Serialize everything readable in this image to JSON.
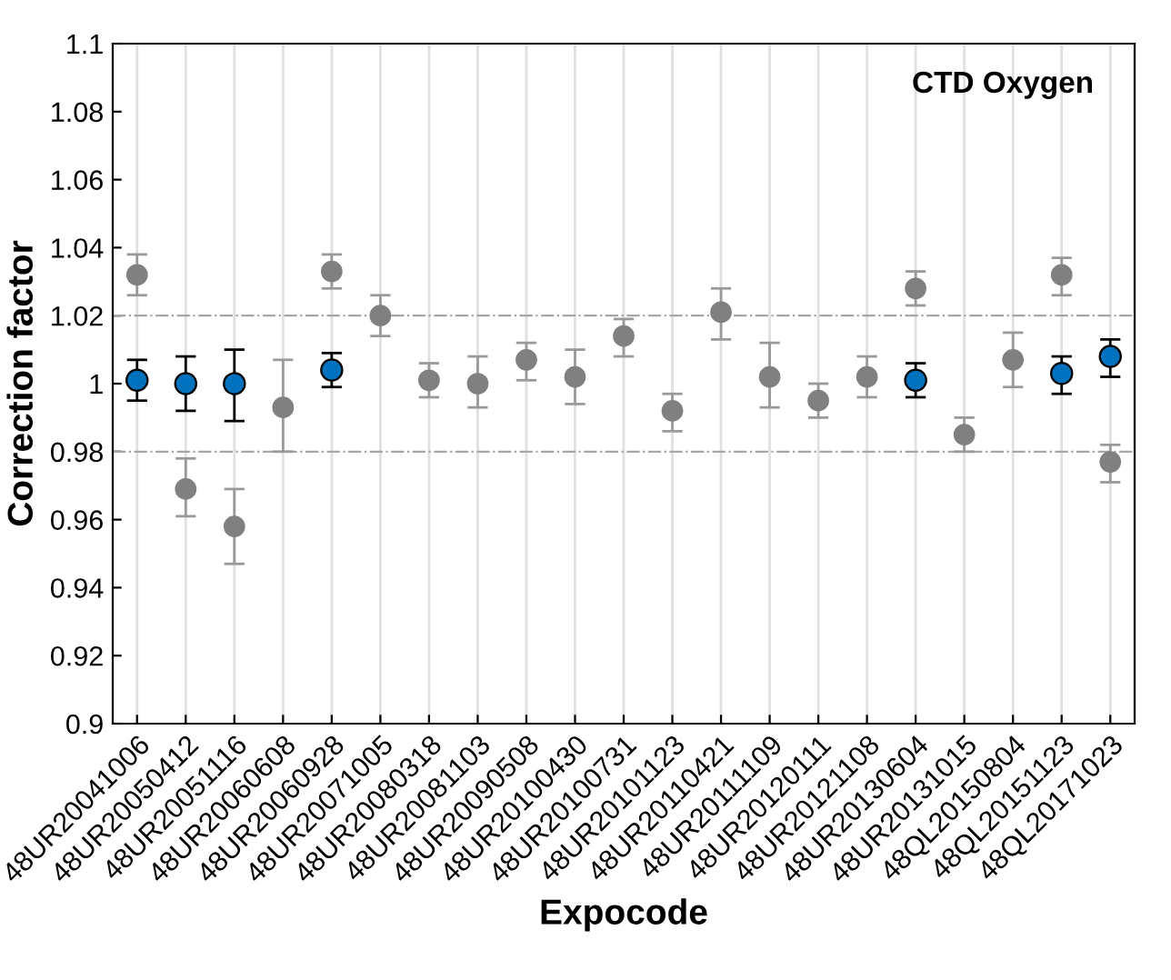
{
  "chart_data": {
    "type": "scatter",
    "title": "CTD Oxygen",
    "xlabel": "Expocode",
    "ylabel": "Correction factor",
    "categories": [
      "48UR20041006",
      "48UR20050412",
      "48UR20051116",
      "48UR20060608",
      "48UR20060928",
      "48UR20071005",
      "48UR20080318",
      "48UR20081103",
      "48UR20090508",
      "48UR20100430",
      "48UR20100731",
      "48UR20101123",
      "48UR20110421",
      "48UR20111109",
      "48UR20120111",
      "48UR20121108",
      "48UR20130604",
      "48UR20131015",
      "48QL20150804",
      "48QL20151123",
      "48QL20171023"
    ],
    "series": [
      {
        "color": "#808080",
        "values": [
          1.032,
          0.969,
          0.958,
          0.993,
          1.033,
          1.02,
          1.001,
          1.0,
          1.007,
          1.002,
          1.014,
          0.992,
          1.021,
          1.002,
          0.995,
          1.002,
          1.028,
          0.985,
          1.007,
          1.032,
          0.977
        ],
        "errors": [
          [
            1.026,
            1.038
          ],
          [
            0.961,
            0.978
          ],
          [
            0.947,
            0.969
          ],
          [
            0.98,
            1.007
          ],
          [
            1.028,
            1.038
          ],
          [
            1.014,
            1.026
          ],
          [
            0.996,
            1.006
          ],
          [
            0.993,
            1.008
          ],
          [
            1.001,
            1.012
          ],
          [
            0.994,
            1.01
          ],
          [
            1.008,
            1.019
          ],
          [
            0.986,
            0.997
          ],
          [
            1.013,
            1.028
          ],
          [
            0.993,
            1.012
          ],
          [
            0.99,
            1.0
          ],
          [
            0.996,
            1.008
          ],
          [
            1.023,
            1.033
          ],
          [
            0.98,
            0.99
          ],
          [
            0.999,
            1.015
          ],
          [
            1.026,
            1.037
          ],
          [
            0.971,
            0.982
          ]
        ]
      },
      {
        "color": "#0072bd",
        "values": [
          1.001,
          1.0,
          1.0,
          null,
          1.004,
          null,
          null,
          null,
          null,
          null,
          null,
          null,
          null,
          null,
          null,
          null,
          1.001,
          null,
          null,
          1.003,
          1.008
        ],
        "errors": [
          [
            0.995,
            1.007
          ],
          [
            0.992,
            1.008
          ],
          [
            0.989,
            1.01
          ],
          null,
          [
            0.999,
            1.009
          ],
          null,
          null,
          null,
          null,
          null,
          null,
          null,
          null,
          null,
          null,
          null,
          [
            0.996,
            1.006
          ],
          null,
          null,
          [
            0.997,
            1.008
          ],
          [
            1.002,
            1.013
          ]
        ]
      }
    ],
    "ylim": [
      0.9,
      1.1
    ],
    "yticks": [
      0.9,
      0.92,
      0.94,
      0.96,
      0.98,
      1,
      1.02,
      1.04,
      1.06,
      1.08,
      1.1
    ],
    "ref_lines": [
      {
        "axis": "y",
        "value": 1.02,
        "color": "#a6a6a6"
      },
      {
        "axis": "y",
        "value": 0.98,
        "color": "#a6a6a6"
      }
    ],
    "grid": "x",
    "marker": "circle"
  }
}
